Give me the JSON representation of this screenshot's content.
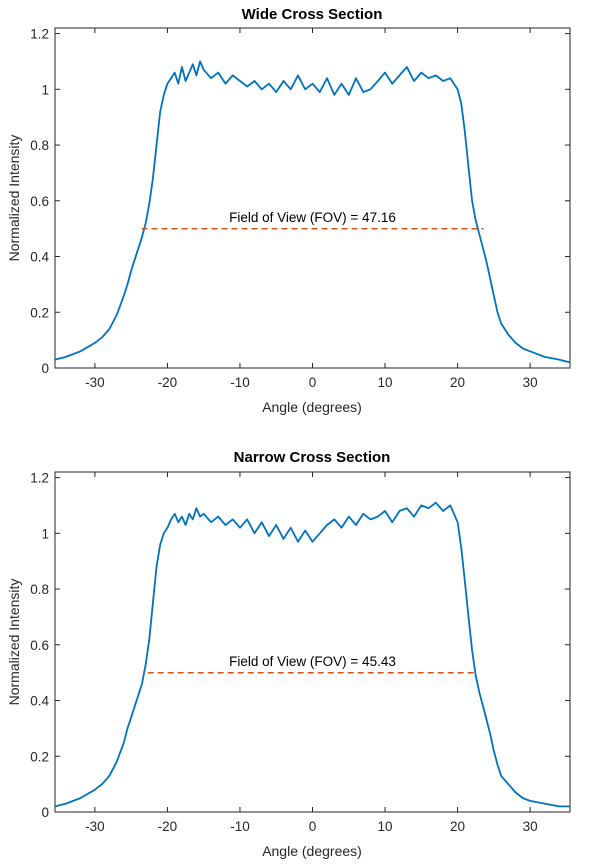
{
  "chart_data": [
    {
      "type": "line",
      "title": "Wide Cross Section",
      "xlabel": "Angle (degrees)",
      "ylabel": "Normalized Intensity",
      "xlim": [
        -35.5,
        35.5
      ],
      "ylim": [
        0,
        1.22
      ],
      "x_ticks": [
        -30,
        -20,
        -10,
        0,
        10,
        20,
        30
      ],
      "x_tick_labels": [
        "-30",
        "-20",
        "-10",
        "0",
        "10",
        "20",
        "30"
      ],
      "y_ticks": [
        0,
        0.2,
        0.4,
        0.6,
        0.8,
        1,
        1.2
      ],
      "y_tick_labels": [
        "0",
        "0.2",
        "0.4",
        "0.6",
        "0.8",
        "1",
        "1.2"
      ],
      "grid": false,
      "series": [
        {
          "color": "#0072BD",
          "x": [
            -35.5,
            -34,
            -32,
            -30,
            -29,
            -28,
            -27,
            -26,
            -25.5,
            -25,
            -24.5,
            -24,
            -23.5,
            -23,
            -22.5,
            -22,
            -21.5,
            -21,
            -20.5,
            -20,
            -19.5,
            -19,
            -18.5,
            -18,
            -17.5,
            -17,
            -16.5,
            -16,
            -15.5,
            -15,
            -14,
            -13,
            -12,
            -11,
            -10,
            -9,
            -8,
            -7,
            -6,
            -5,
            -4,
            -3,
            -2,
            -1,
            0,
            1,
            2,
            3,
            4,
            5,
            6,
            7,
            8,
            9,
            10,
            11,
            12,
            13,
            14,
            15,
            16,
            17,
            18,
            19,
            20,
            20.5,
            21,
            21.5,
            22,
            22.5,
            23,
            23.5,
            24,
            24.5,
            25,
            25.5,
            26,
            27,
            28,
            29,
            30,
            32,
            34,
            35.5
          ],
          "y": [
            0.03,
            0.04,
            0.06,
            0.09,
            0.11,
            0.14,
            0.19,
            0.26,
            0.3,
            0.35,
            0.39,
            0.43,
            0.47,
            0.52,
            0.59,
            0.68,
            0.8,
            0.92,
            0.98,
            1.02,
            1.04,
            1.06,
            1.02,
            1.08,
            1.03,
            1.06,
            1.09,
            1.05,
            1.1,
            1.07,
            1.04,
            1.06,
            1.02,
            1.05,
            1.03,
            1.01,
            1.03,
            1.0,
            1.02,
            0.99,
            1.03,
            1.0,
            1.05,
            1.0,
            1.02,
            0.99,
            1.04,
            0.98,
            1.02,
            0.98,
            1.04,
            0.99,
            1.0,
            1.03,
            1.06,
            1.02,
            1.05,
            1.08,
            1.03,
            1.06,
            1.04,
            1.05,
            1.03,
            1.04,
            1.0,
            0.95,
            0.85,
            0.72,
            0.6,
            0.53,
            0.48,
            0.43,
            0.38,
            0.32,
            0.26,
            0.2,
            0.16,
            0.12,
            0.09,
            0.07,
            0.06,
            0.04,
            0.03,
            0.02
          ]
        },
        {
          "color": "#D95319",
          "x": [
            -23.58,
            23.58
          ],
          "y": [
            0.5,
            0.5
          ]
        }
      ],
      "annotations": [
        {
          "text": "Field of View (FOV) = 47.16",
          "x": 0,
          "y": 0.52
        }
      ]
    },
    {
      "type": "line",
      "title": "Narrow Cross Section",
      "xlabel": "Angle (degrees)",
      "ylabel": "Normalized Intensity",
      "xlim": [
        -35.5,
        35.5
      ],
      "ylim": [
        0,
        1.22
      ],
      "x_ticks": [
        -30,
        -20,
        -10,
        0,
        10,
        20,
        30
      ],
      "x_tick_labels": [
        "-30",
        "-20",
        "-10",
        "0",
        "10",
        "20",
        "30"
      ],
      "y_ticks": [
        0,
        0.2,
        0.4,
        0.6,
        0.8,
        1,
        1.2
      ],
      "y_tick_labels": [
        "0",
        "0.2",
        "0.4",
        "0.6",
        "0.8",
        "1",
        "1.2"
      ],
      "grid": false,
      "series": [
        {
          "color": "#0072BD",
          "x": [
            -35.5,
            -34,
            -32,
            -30,
            -29,
            -28,
            -27,
            -26,
            -25.5,
            -25,
            -24.5,
            -24,
            -23.5,
            -23,
            -22.5,
            -22,
            -21.5,
            -21,
            -20.5,
            -20,
            -19.5,
            -19,
            -18.5,
            -18,
            -17.5,
            -17,
            -16.5,
            -16,
            -15.5,
            -15,
            -14,
            -13,
            -12,
            -11,
            -10,
            -9,
            -8,
            -7,
            -6,
            -5,
            -4,
            -3,
            -2,
            -1,
            0,
            1,
            2,
            3,
            4,
            5,
            6,
            7,
            8,
            9,
            10,
            11,
            12,
            13,
            14,
            15,
            16,
            17,
            18,
            19,
            20,
            20.5,
            21,
            21.5,
            22,
            22.5,
            23,
            23.5,
            24,
            24.5,
            25,
            25.5,
            26,
            27,
            28,
            29,
            30,
            32,
            34,
            35.5
          ],
          "y": [
            0.02,
            0.03,
            0.05,
            0.08,
            0.1,
            0.13,
            0.18,
            0.25,
            0.3,
            0.34,
            0.38,
            0.42,
            0.46,
            0.53,
            0.62,
            0.75,
            0.88,
            0.96,
            1.0,
            1.02,
            1.05,
            1.07,
            1.04,
            1.06,
            1.03,
            1.07,
            1.05,
            1.09,
            1.06,
            1.07,
            1.04,
            1.06,
            1.03,
            1.05,
            1.02,
            1.05,
            1.0,
            1.04,
            0.99,
            1.03,
            0.98,
            1.02,
            0.97,
            1.01,
            0.97,
            1.0,
            1.03,
            1.05,
            1.02,
            1.06,
            1.03,
            1.07,
            1.05,
            1.06,
            1.08,
            1.04,
            1.08,
            1.09,
            1.06,
            1.1,
            1.09,
            1.11,
            1.08,
            1.1,
            1.04,
            0.95,
            0.83,
            0.7,
            0.58,
            0.49,
            0.43,
            0.38,
            0.33,
            0.28,
            0.22,
            0.17,
            0.13,
            0.1,
            0.07,
            0.05,
            0.04,
            0.03,
            0.02,
            0.02
          ]
        },
        {
          "color": "#D95319",
          "x": [
            -22.72,
            22.72
          ],
          "y": [
            0.5,
            0.5
          ]
        }
      ],
      "annotations": [
        {
          "text": "Field of View (FOV) = 45.43",
          "x": 0,
          "y": 0.52
        }
      ]
    }
  ]
}
